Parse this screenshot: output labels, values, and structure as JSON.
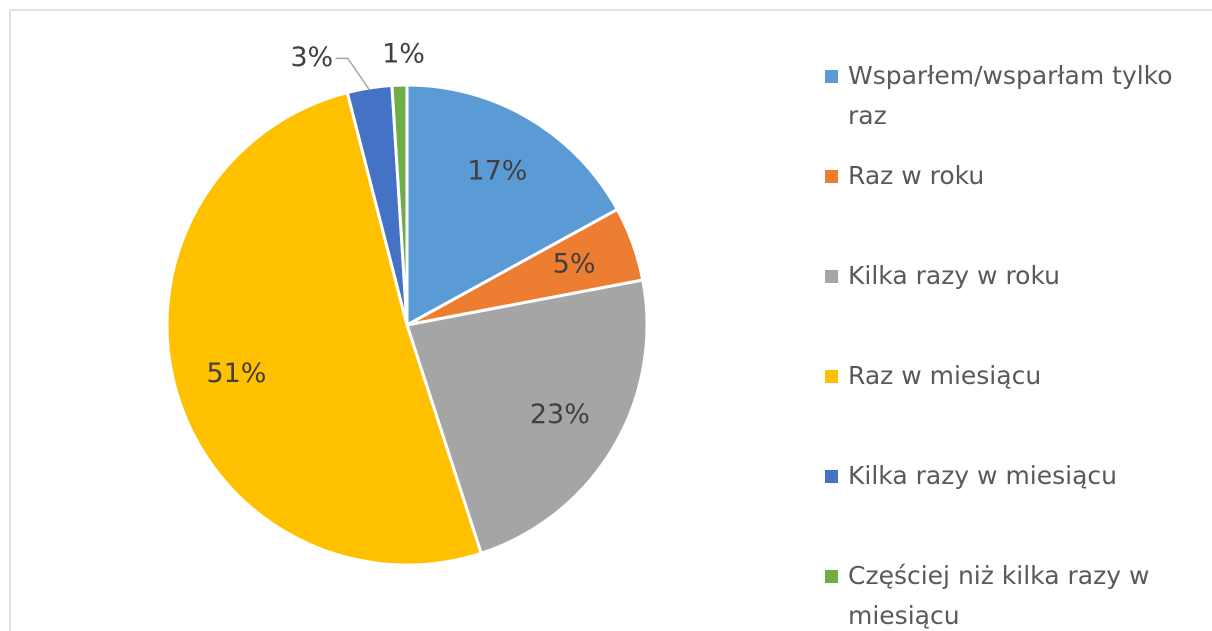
{
  "chart_data": {
    "type": "pie",
    "categories": [
      "Wsparłem/wsparłam tylko raz",
      "Raz w roku",
      "Kilka razy w roku",
      "Raz w miesiącu",
      "Kilka razy w miesiącu",
      "Częściej niż kilka razy w miesiącu"
    ],
    "values": [
      17,
      5,
      23,
      51,
      3,
      1
    ],
    "value_labels": [
      "17%",
      "5%",
      "23%",
      "51%",
      "3%",
      "1%"
    ],
    "colors": [
      "#5b9bd5",
      "#ed7d31",
      "#a5a5a5",
      "#ffc000",
      "#4472c4",
      "#70ad47"
    ],
    "legend": "right"
  }
}
